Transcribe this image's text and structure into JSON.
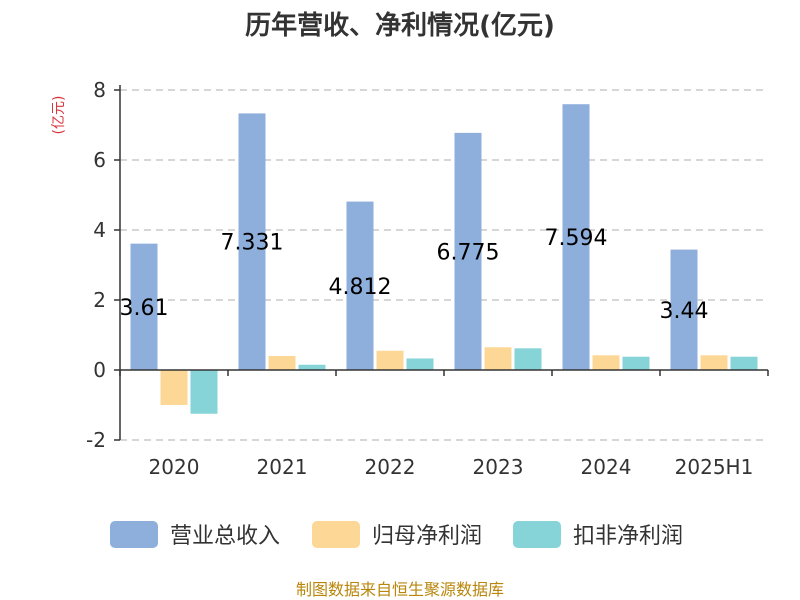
{
  "chart_data": {
    "type": "bar",
    "title": "历年营收、净利情况(亿元)",
    "ylabel": "(亿元)",
    "xlabel": "",
    "categories": [
      "2020",
      "2021",
      "2022",
      "2023",
      "2024",
      "2025H1"
    ],
    "series": [
      {
        "name": "营业总收入",
        "color": "#8eaedb",
        "values": [
          3.61,
          7.331,
          4.812,
          6.775,
          7.594,
          3.44
        ]
      },
      {
        "name": "归母净利润",
        "color": "#fdd796",
        "values": [
          -1.0,
          0.4,
          0.55,
          0.65,
          0.42,
          0.42
        ]
      },
      {
        "name": "扣非净利润",
        "color": "#86d4d8",
        "values": [
          -1.25,
          0.15,
          0.33,
          0.62,
          0.38,
          0.38
        ]
      }
    ],
    "data_labels": [
      "3.61",
      "7.331",
      "4.812",
      "6.775",
      "7.594",
      "3.44"
    ],
    "ylim": [
      -2,
      8
    ],
    "yticks": [
      -2,
      0,
      2,
      4,
      6,
      8
    ],
    "grid": true,
    "legend": "bottom",
    "source": "制图数据来自恒生聚源数据库"
  }
}
